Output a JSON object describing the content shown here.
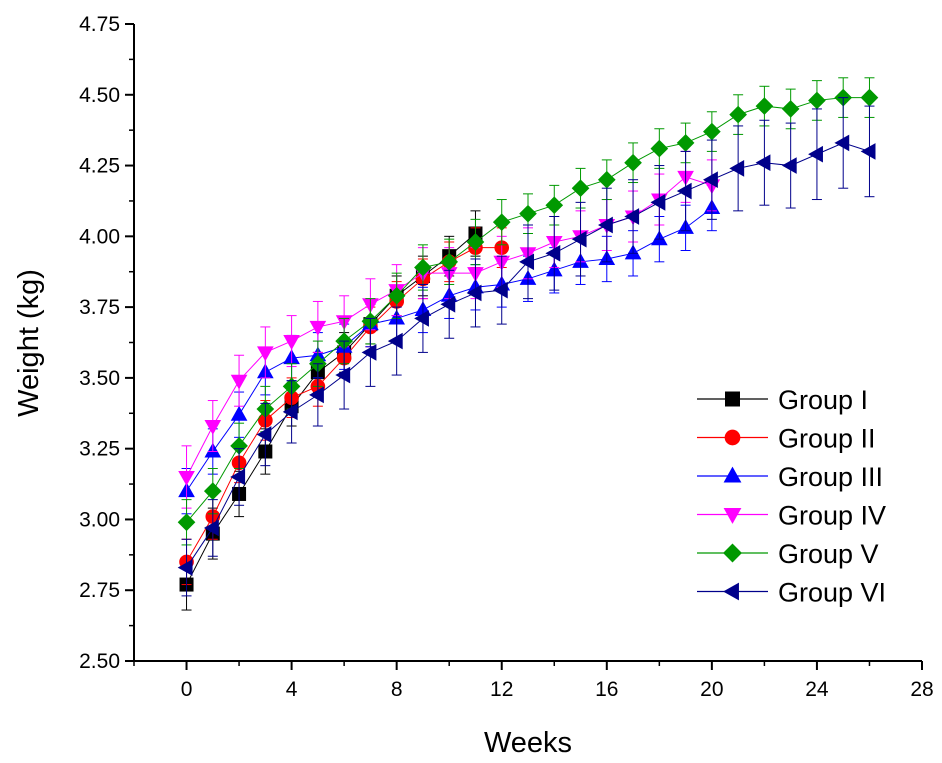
{
  "chart_data": {
    "type": "line",
    "title": "",
    "xlabel": "Weeks",
    "ylabel": "Weight (kg)",
    "xlim": [
      -2,
      28
    ],
    "ylim": [
      2.5,
      4.75
    ],
    "xticks": [
      0,
      4,
      8,
      12,
      16,
      20,
      24,
      28
    ],
    "yticks": [
      2.5,
      2.75,
      3.0,
      3.25,
      3.5,
      3.75,
      4.0,
      4.25,
      4.5,
      4.75
    ],
    "xtick_labels": [
      "0",
      "4",
      "8",
      "12",
      "16",
      "20",
      "24",
      "28"
    ],
    "ytick_labels": [
      "2.50",
      "2.75",
      "3.00",
      "3.25",
      "3.50",
      "3.75",
      "4.00",
      "4.25",
      "4.50",
      "4.75"
    ],
    "grid": false,
    "legend_position": "bottom-right",
    "series": [
      {
        "name": "Group I",
        "color": "#000000",
        "marker": "square",
        "x": [
          0,
          1,
          2,
          3,
          4,
          5,
          6,
          7,
          8,
          9,
          10,
          11
        ],
        "y": [
          2.77,
          2.95,
          3.09,
          3.24,
          3.4,
          3.52,
          3.59,
          3.69,
          3.79,
          3.86,
          3.93,
          4.01
        ],
        "err": [
          0.09,
          0.09,
          0.08,
          0.08,
          0.07,
          0.07,
          0.07,
          0.07,
          0.07,
          0.07,
          0.07,
          0.08
        ]
      },
      {
        "name": "Group II",
        "color": "#ff0000",
        "marker": "circle",
        "x": [
          0,
          1,
          2,
          3,
          4,
          5,
          6,
          7,
          8,
          9,
          10,
          11,
          12
        ],
        "y": [
          2.85,
          3.01,
          3.2,
          3.35,
          3.43,
          3.47,
          3.57,
          3.68,
          3.77,
          3.85,
          3.91,
          3.96,
          3.96
        ],
        "err": [
          0.08,
          0.08,
          0.07,
          0.07,
          0.07,
          0.07,
          0.07,
          0.07,
          0.07,
          0.07,
          0.07,
          0.07,
          0.07
        ]
      },
      {
        "name": "Group III",
        "color": "#0000ff",
        "marker": "triangle-up",
        "x": [
          0,
          1,
          2,
          3,
          4,
          5,
          6,
          7,
          8,
          9,
          10,
          11,
          12,
          13,
          14,
          15,
          16,
          17,
          18,
          19,
          20
        ],
        "y": [
          3.1,
          3.24,
          3.37,
          3.52,
          3.57,
          3.58,
          3.61,
          3.69,
          3.71,
          3.74,
          3.79,
          3.82,
          3.83,
          3.85,
          3.88,
          3.91,
          3.92,
          3.94,
          3.99,
          4.03,
          4.1
        ],
        "err": [
          0.08,
          0.08,
          0.08,
          0.08,
          0.08,
          0.08,
          0.08,
          0.08,
          0.08,
          0.08,
          0.08,
          0.08,
          0.08,
          0.08,
          0.08,
          0.08,
          0.08,
          0.08,
          0.08,
          0.08,
          0.08
        ]
      },
      {
        "name": "Group IV",
        "color": "#ff00ff",
        "marker": "triangle-down",
        "x": [
          0,
          1,
          2,
          3,
          4,
          5,
          6,
          7,
          8,
          9,
          10,
          11,
          12,
          13,
          14,
          15,
          16,
          17,
          18,
          19,
          20
        ],
        "y": [
          3.15,
          3.33,
          3.49,
          3.59,
          3.63,
          3.68,
          3.7,
          3.76,
          3.81,
          3.87,
          3.87,
          3.87,
          3.91,
          3.94,
          3.98,
          4.0,
          4.04,
          4.07,
          4.13,
          4.21,
          4.18
        ],
        "err": [
          0.11,
          0.09,
          0.09,
          0.09,
          0.09,
          0.09,
          0.09,
          0.09,
          0.09,
          0.09,
          0.09,
          0.09,
          0.09,
          0.09,
          0.09,
          0.09,
          0.09,
          0.09,
          0.09,
          0.09,
          0.09
        ]
      },
      {
        "name": "Group V",
        "color": "#009900",
        "marker": "diamond",
        "x": [
          0,
          1,
          2,
          3,
          4,
          5,
          6,
          7,
          8,
          9,
          10,
          11,
          12,
          13,
          14,
          15,
          16,
          17,
          18,
          19,
          20,
          21,
          22,
          23,
          24,
          25,
          26
        ],
        "y": [
          2.99,
          3.1,
          3.26,
          3.39,
          3.47,
          3.55,
          3.63,
          3.7,
          3.79,
          3.89,
          3.91,
          3.98,
          4.05,
          4.08,
          4.11,
          4.17,
          4.2,
          4.26,
          4.31,
          4.33,
          4.37,
          4.43,
          4.46,
          4.45,
          4.48,
          4.49,
          4.49
        ],
        "err": [
          0.08,
          0.08,
          0.08,
          0.08,
          0.08,
          0.08,
          0.08,
          0.08,
          0.08,
          0.08,
          0.08,
          0.08,
          0.08,
          0.07,
          0.07,
          0.07,
          0.07,
          0.07,
          0.07,
          0.07,
          0.07,
          0.07,
          0.07,
          0.07,
          0.07,
          0.07,
          0.07
        ]
      },
      {
        "name": "Group VI",
        "color": "#00008b",
        "marker": "triangle-left",
        "x": [
          0,
          1,
          2,
          3,
          4,
          5,
          6,
          7,
          8,
          9,
          10,
          11,
          12,
          13,
          14,
          15,
          16,
          17,
          18,
          19,
          20,
          21,
          22,
          23,
          24,
          25,
          26
        ],
        "y": [
          2.83,
          2.97,
          3.15,
          3.3,
          3.38,
          3.44,
          3.51,
          3.59,
          3.63,
          3.71,
          3.76,
          3.8,
          3.81,
          3.91,
          3.94,
          3.99,
          4.04,
          4.07,
          4.12,
          4.16,
          4.2,
          4.24,
          4.26,
          4.25,
          4.29,
          4.33,
          4.3
        ],
        "err": [
          0.1,
          0.1,
          0.1,
          0.11,
          0.11,
          0.11,
          0.12,
          0.12,
          0.12,
          0.12,
          0.12,
          0.12,
          0.12,
          0.13,
          0.13,
          0.13,
          0.13,
          0.13,
          0.13,
          0.14,
          0.14,
          0.15,
          0.15,
          0.15,
          0.16,
          0.16,
          0.16
        ]
      }
    ]
  }
}
